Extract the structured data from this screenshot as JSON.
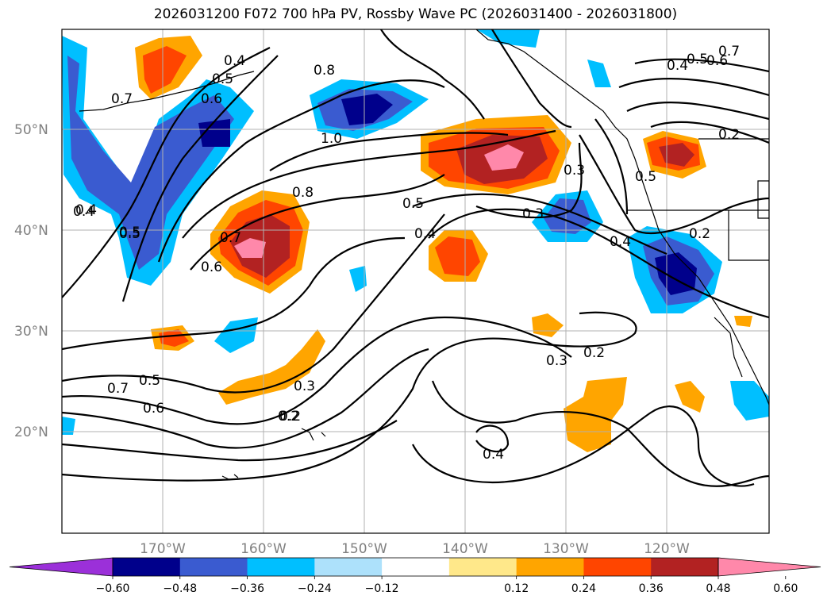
{
  "title": "2026031200 F072 700 hPa PV, Rossby Wave PC (2026031400 - 2026031800)",
  "lat_labels": [
    "50°N",
    "40°N",
    "30°N",
    "20°N"
  ],
  "lon_labels": [
    "170°W",
    "160°W",
    "150°W",
    "140°W",
    "130°W",
    "120°W"
  ],
  "colorbar": {
    "colors": [
      "#9B30D9",
      "#00008B",
      "#3A5BD0",
      "#00BFFF",
      "#ADE1FB",
      "#FFFFFF",
      "#FFE88A",
      "#FFA500",
      "#FF4500",
      "#B22222",
      "#FF88AA"
    ],
    "tick_labels": [
      "−0.60",
      "−0.48",
      "−0.36",
      "−0.24",
      "−0.12",
      "0.12",
      "0.24",
      "0.36",
      "0.48",
      "0.60"
    ]
  },
  "contour_labels": [
    "0.4",
    "0.5",
    "0.6",
    "0.7",
    "0.8",
    "1.0",
    "0.8",
    "0.7",
    "0.6",
    "0.5",
    "0.4",
    "0.5",
    "0.4",
    "0.3",
    "0.3",
    "0.2",
    "0.3",
    "0.2",
    "0.4",
    "0.5",
    "0.6",
    "0.7",
    "0.4",
    "0.5",
    "0.6",
    "0.7",
    "0.2",
    "0.5",
    "0.2",
    "0.4",
    "0.3",
    "0.2",
    "0.5",
    "0.4"
  ]
}
